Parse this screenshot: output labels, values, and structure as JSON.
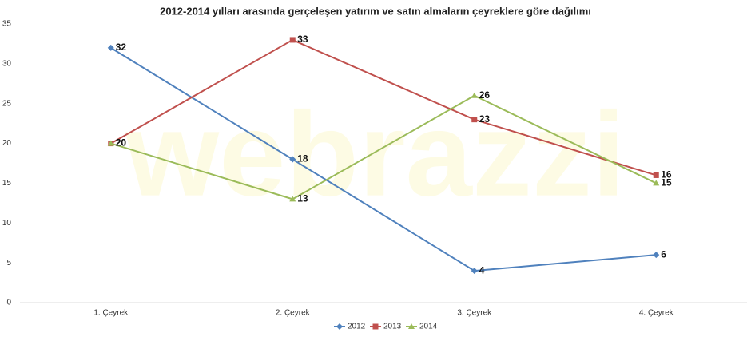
{
  "chart_data": {
    "type": "line",
    "title": "2012-2014 yılları arasında gerçeleşen yatırım ve satın almaların çeyreklere göre dağılımı",
    "watermark": "webrazzi",
    "categories": [
      "1. Çeyrek",
      "2. Çeyrek",
      "3. Çeyrek",
      "4. Çeyrek"
    ],
    "series": [
      {
        "name": "2012",
        "color": "#4f81bd",
        "marker": "diamond",
        "values": [
          32,
          18,
          4,
          6
        ]
      },
      {
        "name": "2013",
        "color": "#c0504d",
        "marker": "square",
        "values": [
          20,
          33,
          23,
          16
        ]
      },
      {
        "name": "2014",
        "color": "#9bbb59",
        "marker": "triangle",
        "values": [
          20,
          13,
          26,
          15
        ]
      }
    ],
    "ylim": [
      0,
      35
    ],
    "yticks": [
      0,
      5,
      10,
      15,
      20,
      25,
      30,
      35
    ],
    "grid": false,
    "legend": "bottom"
  }
}
